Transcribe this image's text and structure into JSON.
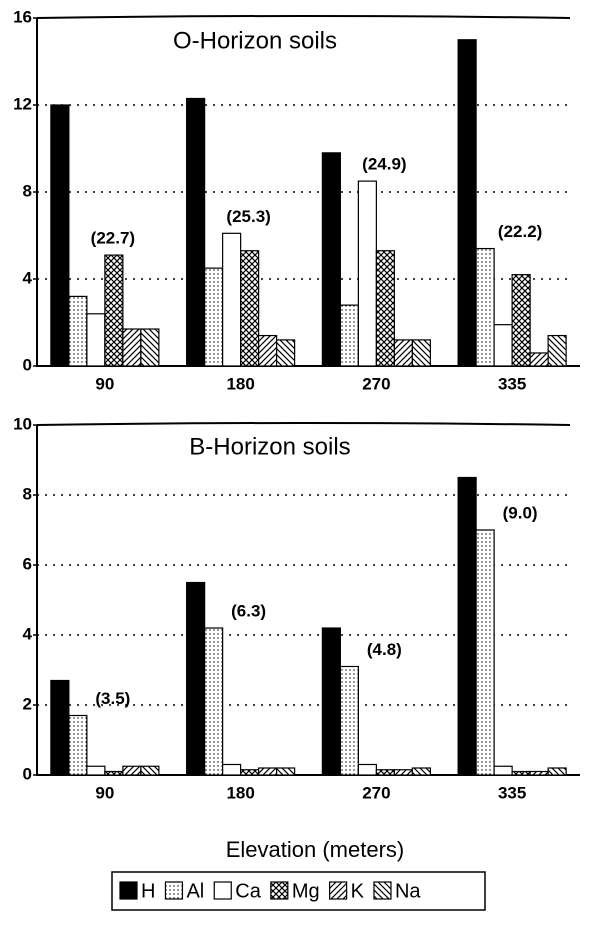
{
  "chart_data": [
    {
      "type": "bar",
      "title": "O-Horizon soils",
      "categories": [
        "90",
        "180",
        "270",
        "335"
      ],
      "ylim": [
        0,
        16
      ],
      "yticks": [
        0,
        4,
        8,
        12,
        16
      ],
      "grid": true,
      "annotations": [
        "(22.7)",
        "(25.3)",
        "(24.9)",
        "(22.2)"
      ],
      "series": [
        {
          "name": "H",
          "color": "#000000",
          "pattern": "solid",
          "values": [
            12.0,
            12.3,
            9.8,
            15.0
          ]
        },
        {
          "name": "Al",
          "color": "#ffffff",
          "pattern": "dots",
          "values": [
            3.2,
            4.5,
            2.8,
            5.4
          ]
        },
        {
          "name": "Ca",
          "color": "#ffffff",
          "pattern": "none",
          "values": [
            2.4,
            6.1,
            8.5,
            1.9
          ]
        },
        {
          "name": "Mg",
          "color": "#ffffff",
          "pattern": "crosshatch",
          "values": [
            5.1,
            5.3,
            5.3,
            4.2
          ]
        },
        {
          "name": "K",
          "color": "#ffffff",
          "pattern": "diagonal",
          "values": [
            1.7,
            1.4,
            1.2,
            0.6
          ]
        },
        {
          "name": "Na",
          "color": "#ffffff",
          "pattern": "backdiagonal",
          "values": [
            1.7,
            1.2,
            1.2,
            1.4
          ]
        }
      ]
    },
    {
      "type": "bar",
      "title": "B-Horizon soils",
      "xlabel": "Elevation (meters)",
      "categories": [
        "90",
        "180",
        "270",
        "335"
      ],
      "ylim": [
        0,
        10
      ],
      "yticks": [
        0,
        2,
        4,
        6,
        8,
        10
      ],
      "grid": true,
      "annotations": [
        "(3.5)",
        "(6.3)",
        "(4.8)",
        "(9.0)"
      ],
      "series": [
        {
          "color": "#000000",
          "pattern": "solid",
          "values": [
            2.7,
            5.5,
            4.2,
            8.5
          ]
        },
        {
          "color": "#ffffff",
          "pattern": "dots",
          "values": [
            1.7,
            4.2,
            3.1,
            7.0
          ]
        },
        {
          "color": "#ffffff",
          "pattern": "none",
          "values": [
            0.25,
            0.3,
            0.3,
            0.25
          ]
        },
        {
          "color": "#ffffff",
          "pattern": "crosshatch",
          "values": [
            0.1,
            0.15,
            0.15,
            0.1
          ]
        },
        {
          "color": "#ffffff",
          "pattern": "diagonal",
          "values": [
            0.25,
            0.2,
            0.15,
            0.1
          ]
        },
        {
          "color": "#ffffff",
          "pattern": "backdiagonal",
          "values": [
            0.25,
            0.2,
            0.2,
            0.2
          ]
        }
      ]
    }
  ]
}
